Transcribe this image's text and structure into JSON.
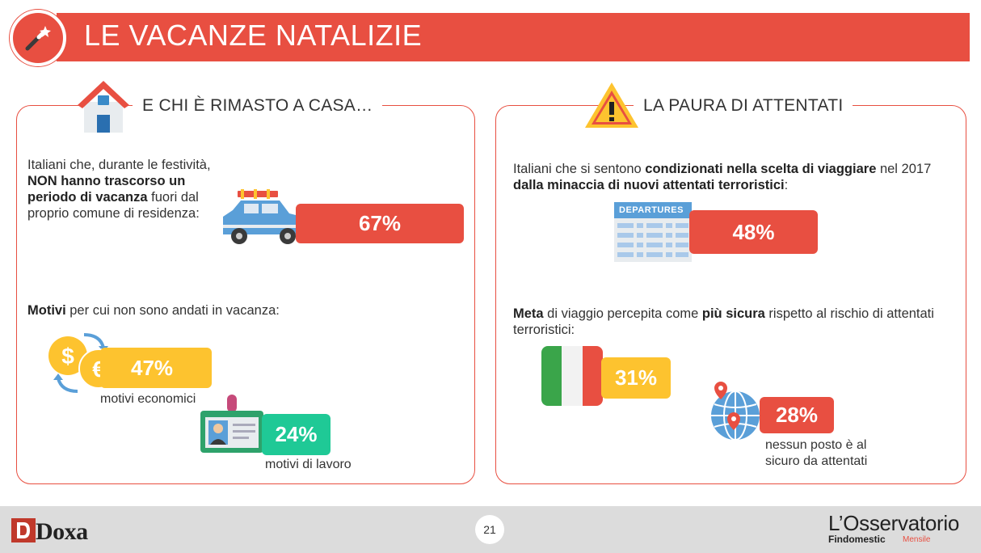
{
  "header": {
    "title": "LE VACANZE NATALIZIE"
  },
  "left": {
    "heading": "E CHI È RIMASTO A CASA…",
    "intro": {
      "part1": "Italiani che, durante le festività, ",
      "bold": "NON hanno trascorso un periodo di vacanza",
      "part2": " fuori dal proprio comune di residenza:"
    },
    "intro_pct": "67%",
    "reasons_bold": "Motivi",
    "reasons_rest": " per cui non sono andati in vacanza:",
    "economic_pct": "47%",
    "economic_label": "motivi economici",
    "work_pct": "24%",
    "work_label": "motivi di lavoro"
  },
  "right": {
    "heading": "LA PAURA DI ATTENTATI",
    "intro": {
      "part1": "Italiani che si sentono ",
      "bold1": "condizionati nella scelta di viaggiare",
      "part2": " nel 2017 ",
      "bold2": "dalla minaccia di nuovi attentati terroristici",
      "part3": ":"
    },
    "departures_label": "DEPARTURES",
    "intro_pct": "48%",
    "meta": {
      "bold1": "Meta",
      "part1": " di viaggio percepita come ",
      "bold2": "più sicura",
      "part2": " rispetto al rischio di attentati terroristici:"
    },
    "italy_pct": "31%",
    "nowhere_pct": "28%",
    "nowhere_label": "nessun posto è al sicuro da attentati"
  },
  "footer": {
    "page": "21",
    "doxa": "Doxa",
    "obs_title": "L’Osservatorio",
    "obs_sub": "Findomestic",
    "obs_sub2": "Mensile"
  },
  "colors": {
    "accent": "#e84f41",
    "yellow": "#fdc32f",
    "green": "#1fc996"
  }
}
